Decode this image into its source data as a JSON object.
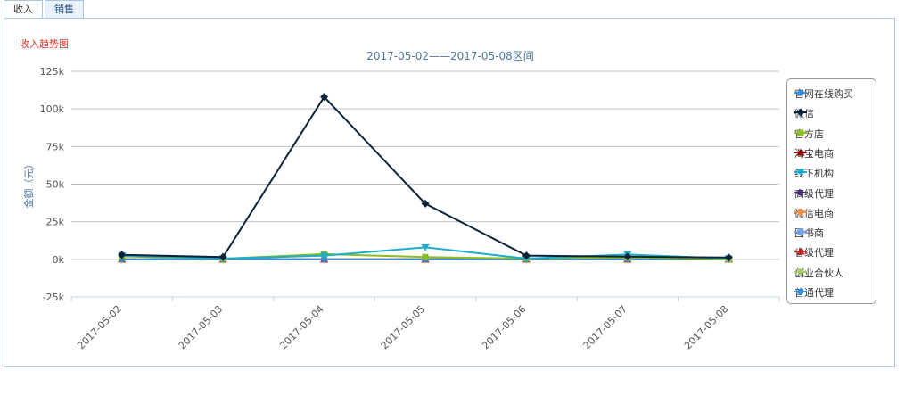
{
  "tabs": [
    {
      "label": "收入"
    },
    {
      "label": "销售"
    }
  ],
  "chart_data": {
    "type": "line",
    "title": "收入趋势图",
    "subtitle": "2017-05-02——2017-05-08区间",
    "ylabel": "金额（元）",
    "xlabel": "",
    "ylim": [
      -25000,
      125000
    ],
    "y_ticks": [
      "-25k",
      "0k",
      "25k",
      "50k",
      "75k",
      "100k",
      "125k"
    ],
    "grid": true,
    "legend_position": "right",
    "categories": [
      "2017-05-02",
      "2017-05-03",
      "2017-05-04",
      "2017-05-05",
      "2017-05-06",
      "2017-05-07",
      "2017-05-08"
    ],
    "series": [
      {
        "name": "官网在线购买",
        "color": "#3a8bd6",
        "marker": "circle",
        "values": [
          0,
          0,
          0,
          0,
          0,
          0,
          0
        ]
      },
      {
        "name": "微信",
        "color": "#0d233a",
        "marker": "diamond",
        "values": [
          3000,
          1500,
          108000,
          37000,
          2500,
          1800,
          1200
        ]
      },
      {
        "name": "官方店",
        "color": "#8bbc21",
        "marker": "square",
        "values": [
          2000,
          500,
          3500,
          1500,
          500,
          1200,
          0
        ]
      },
      {
        "name": "淘宝电商",
        "color": "#910000",
        "marker": "triangle",
        "values": [
          0,
          0,
          0,
          0,
          0,
          0,
          0
        ]
      },
      {
        "name": "线下机构",
        "color": "#1aadce",
        "marker": "triangle-down",
        "values": [
          2500,
          500,
          2500,
          8000,
          500,
          3200,
          500
        ]
      },
      {
        "name": "高级代理",
        "color": "#492970",
        "marker": "circle",
        "values": [
          0,
          0,
          0,
          0,
          0,
          0,
          0
        ]
      },
      {
        "name": "微信电商",
        "color": "#f28f43",
        "marker": "diamond",
        "values": [
          0,
          0,
          0,
          0,
          0,
          0,
          0
        ]
      },
      {
        "name": "图书商",
        "color": "#77a1e5",
        "marker": "square",
        "values": [
          0,
          0,
          0,
          0,
          0,
          0,
          0
        ]
      },
      {
        "name": "省级代理",
        "color": "#c42525",
        "marker": "triangle",
        "values": [
          0,
          0,
          0,
          0,
          0,
          0,
          0
        ]
      },
      {
        "name": "创业合伙人",
        "color": "#a6c96a",
        "marker": "triangle-down",
        "values": [
          0,
          0,
          0,
          0,
          0,
          0,
          0
        ]
      },
      {
        "name": "普通代理",
        "color": "#3a8bd6",
        "marker": "circle",
        "values": [
          0,
          0,
          0,
          0,
          0,
          0,
          0
        ]
      }
    ]
  }
}
